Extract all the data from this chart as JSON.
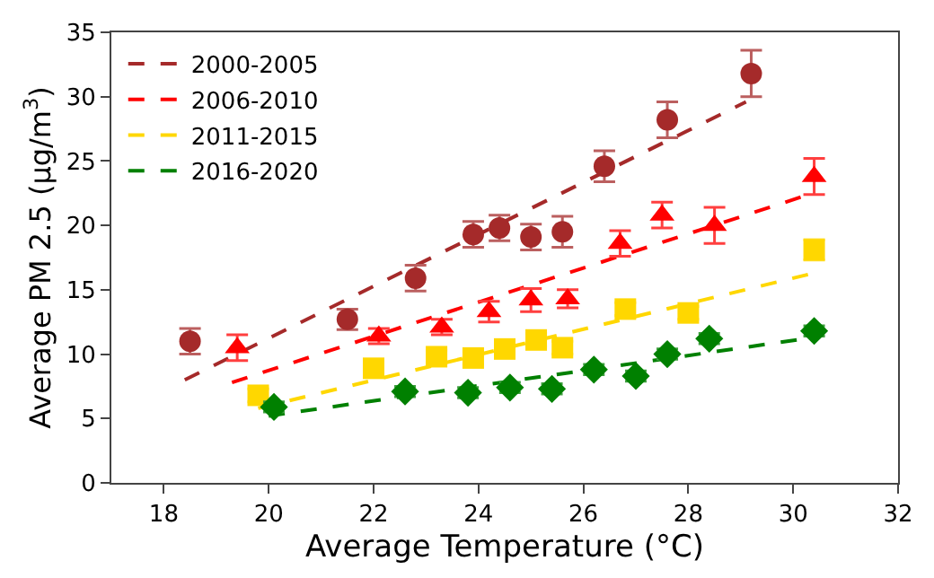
{
  "chart_data": {
    "type": "scatter",
    "xlabel": "Average Temperature (°C)",
    "ylabel": "Average PM 2.5 (μg/m$^{3}$)",
    "xlim": [
      17,
      32
    ],
    "xticks": [
      18,
      20,
      22,
      24,
      26,
      28,
      30,
      32
    ],
    "ylim": [
      0,
      35
    ],
    "yticks": [
      0,
      5,
      10,
      15,
      20,
      25,
      30,
      35
    ],
    "legend": "top left",
    "series": [
      {
        "type": "scatter",
        "color": "#a52a2a",
        "marker": "circle",
        "x": [
          18.5,
          21.5,
          22.8,
          23.9,
          24.4,
          25.0,
          25.6,
          26.4,
          27.6,
          29.2
        ],
        "values": [
          11.0,
          12.7,
          15.9,
          19.3,
          19.8,
          19.1,
          19.5,
          24.6,
          28.2,
          31.8
        ],
        "errors": [
          1,
          0.8,
          1,
          1,
          1,
          1,
          1.2,
          1.2,
          1.4,
          1.8
        ]
      },
      {
        "type": "scatter",
        "color": "#ff0000",
        "marker": "triangle",
        "x": [
          19.4,
          22.1,
          23.3,
          24.2,
          25.0,
          25.7,
          26.7,
          27.5,
          28.5,
          30.4
        ],
        "values": [
          10.5,
          11.4,
          12.1,
          13.3,
          14.2,
          14.3,
          18.6,
          20.8,
          20.0,
          23.8
        ],
        "errors": [
          1,
          0.6,
          0.6,
          0.8,
          0.9,
          0.7,
          1,
          1,
          1.4,
          1.4
        ]
      },
      {
        "type": "scatter",
        "color": "#ffd700",
        "marker": "square",
        "x": [
          19.8,
          22.0,
          23.2,
          23.9,
          24.5,
          25.1,
          25.6,
          26.8,
          28.0,
          30.4
        ],
        "values": [
          6.8,
          8.9,
          9.8,
          9.7,
          10.4,
          11.1,
          10.5,
          13.5,
          13.2,
          18.1
        ],
        "errors": [
          0.5,
          0.5,
          0.5,
          0.5,
          0.5,
          0.5,
          0.5,
          0.5,
          0.5,
          0.8
        ]
      },
      {
        "type": "scatter",
        "color": "#008000",
        "marker": "diamond",
        "x": [
          20.1,
          22.6,
          23.8,
          24.6,
          25.4,
          26.2,
          27.0,
          27.6,
          28.4,
          30.4
        ],
        "values": [
          5.9,
          7.1,
          7.0,
          7.4,
          7.3,
          8.8,
          8.3,
          10.0,
          11.2,
          11.8
        ],
        "errors": [
          0.4,
          0.4,
          0.4,
          0.4,
          0.4,
          0.4,
          0.4,
          0.4,
          0.4,
          0.4
        ]
      },
      {
        "type": "line",
        "name": "2000-2005",
        "color": "#a52a2a",
        "line_style": "dashed",
        "x": [
          18.4,
          29.1
        ],
        "values": [
          8.0,
          29.6
        ]
      },
      {
        "type": "line",
        "name": "2006-2010",
        "color": "#ff0000",
        "line_style": "dashed",
        "x": [
          19.3,
          30.3
        ],
        "values": [
          7.8,
          22.4
        ]
      },
      {
        "type": "line",
        "name": "2011-2015",
        "color": "#ffd700",
        "line_style": "dashed",
        "x": [
          19.8,
          30.3
        ],
        "values": [
          5.8,
          16.2
        ]
      },
      {
        "type": "line",
        "name": "2016-2020",
        "color": "#008000",
        "line_style": "dashed",
        "x": [
          20.0,
          30.4
        ],
        "values": [
          5.2,
          11.3
        ]
      }
    ]
  }
}
